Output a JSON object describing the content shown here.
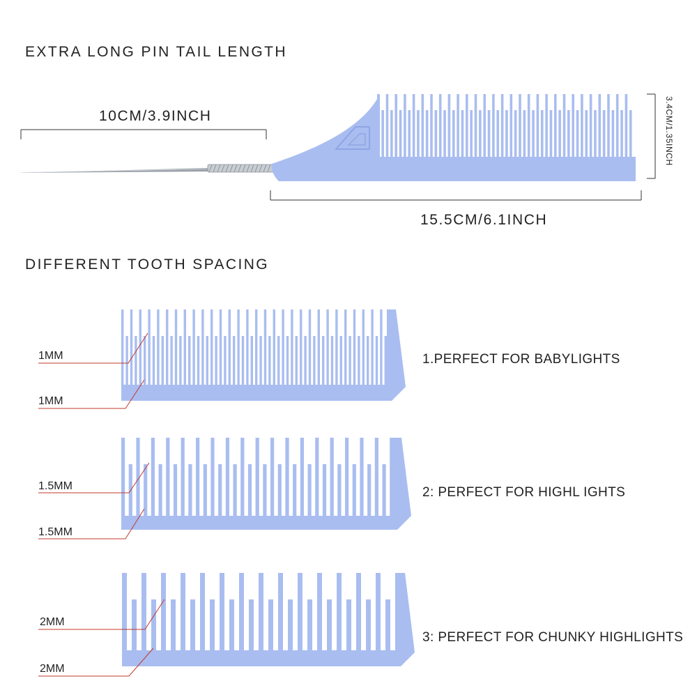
{
  "headings": {
    "tail_length": "EXTRA LONG PIN TAIL LENGTH",
    "tooth_spacing": "DIFFERENT  TOOTH  SPACING"
  },
  "dimensions": {
    "tail": "10CM/3.9INCH",
    "comb_length": "15.5CM/6.1INCH",
    "comb_height": "3.4CM/1.35INCH"
  },
  "combs": [
    {
      "spacing_top": "1MM",
      "spacing_bottom": "1MM",
      "purpose": "1.PERFECT FOR BABYLIGHTS"
    },
    {
      "spacing_top": "1.5MM",
      "spacing_bottom": "1.5MM",
      "purpose": "2: PERFECT FOR HIGHL IGHTS"
    },
    {
      "spacing_top": "2MM",
      "spacing_bottom": "2MM",
      "purpose": "3: PERFECT FOR CHUNKY HIGHLIGHTS"
    }
  ],
  "colors": {
    "comb": "#a9bdf0",
    "comb_edge": "#8ea6e4",
    "pointer_line": "#c0392b",
    "dimension_line": "#333333",
    "pin": "#9aa0a8"
  }
}
